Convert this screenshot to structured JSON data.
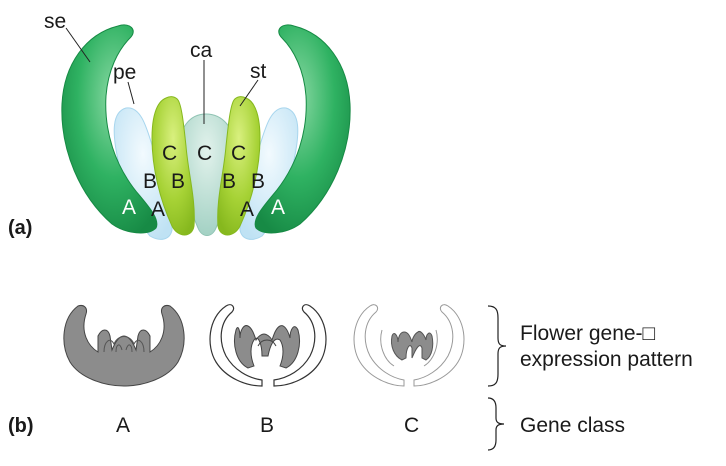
{
  "panel_a": {
    "label": "(a)",
    "parts": {
      "sepal": "se",
      "petal": "pe",
      "carpel": "ca",
      "stamen": "st"
    },
    "letters": {
      "left_sepal": "A",
      "left_petal_upper": "B",
      "left_petal_lower": "A",
      "left_stamen_upper": "C",
      "left_stamen_lower": "B",
      "carpel": "C",
      "right_stamen_upper": "C",
      "right_stamen_lower": "B",
      "right_petal_upper": "B",
      "right_petal_lower": "A",
      "right_sepal": "A"
    }
  },
  "panel_b": {
    "label": "(b)",
    "gene_classes": [
      "A",
      "B",
      "C"
    ],
    "brace_labels": {
      "expression_line1": "Flower gene-□",
      "expression_line2": "expression pattern",
      "gene_class": "Gene class"
    }
  },
  "colors": {
    "sepal": "#1fa454",
    "sepal_highlight": "#7fd19a",
    "petal": "#cfeaf7",
    "petal_stroke": "#9fd1ea",
    "stamen": "#9ccc2e",
    "stamen_highlight": "#d3ec7a",
    "carpel": "#a9d6c9",
    "carpel_highlight": "#d6ede6",
    "gene_fill": "#8c8c8c",
    "outline": "#333333"
  }
}
